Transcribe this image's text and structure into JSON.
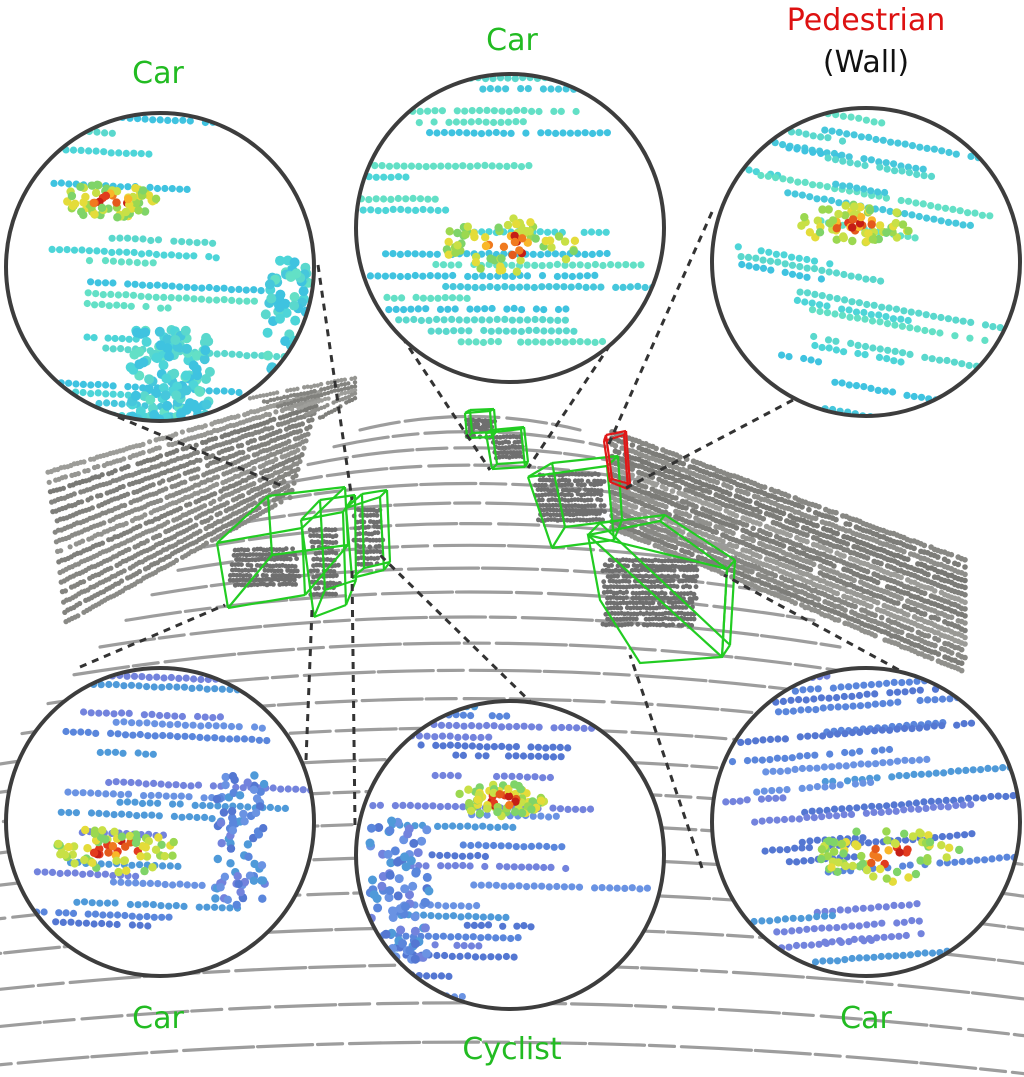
{
  "colors": {
    "car": "#22bb22",
    "pedestrian": "#dd1111",
    "context": "#111111",
    "box_car": "#22cc22",
    "box_pedestrian": "#e01818",
    "ground_points": "#8c8c8c",
    "inset_border": "#3d3d3d",
    "connector": "#333333"
  },
  "labels": {
    "top_left": "Car",
    "top_center": "Car",
    "top_right_class": "Pedestrian",
    "top_right_context": "(Wall)",
    "bottom_left": "Car",
    "bottom_center": "Cyclist",
    "bottom_right": "Car"
  },
  "insets": [
    {
      "id": "top-left",
      "class": "car",
      "point_palette": "warm-on-cyan"
    },
    {
      "id": "top-center",
      "class": "car",
      "point_palette": "warm-on-cyan"
    },
    {
      "id": "top-right",
      "class": "pedestrian",
      "point_palette": "warm-on-cyan"
    },
    {
      "id": "bottom-left",
      "class": "car",
      "point_palette": "warm-on-blue"
    },
    {
      "id": "bottom-center",
      "class": "cyclist",
      "point_palette": "warm-on-blue"
    },
    {
      "id": "bottom-right",
      "class": "car",
      "point_palette": "warm-on-blue"
    }
  ]
}
